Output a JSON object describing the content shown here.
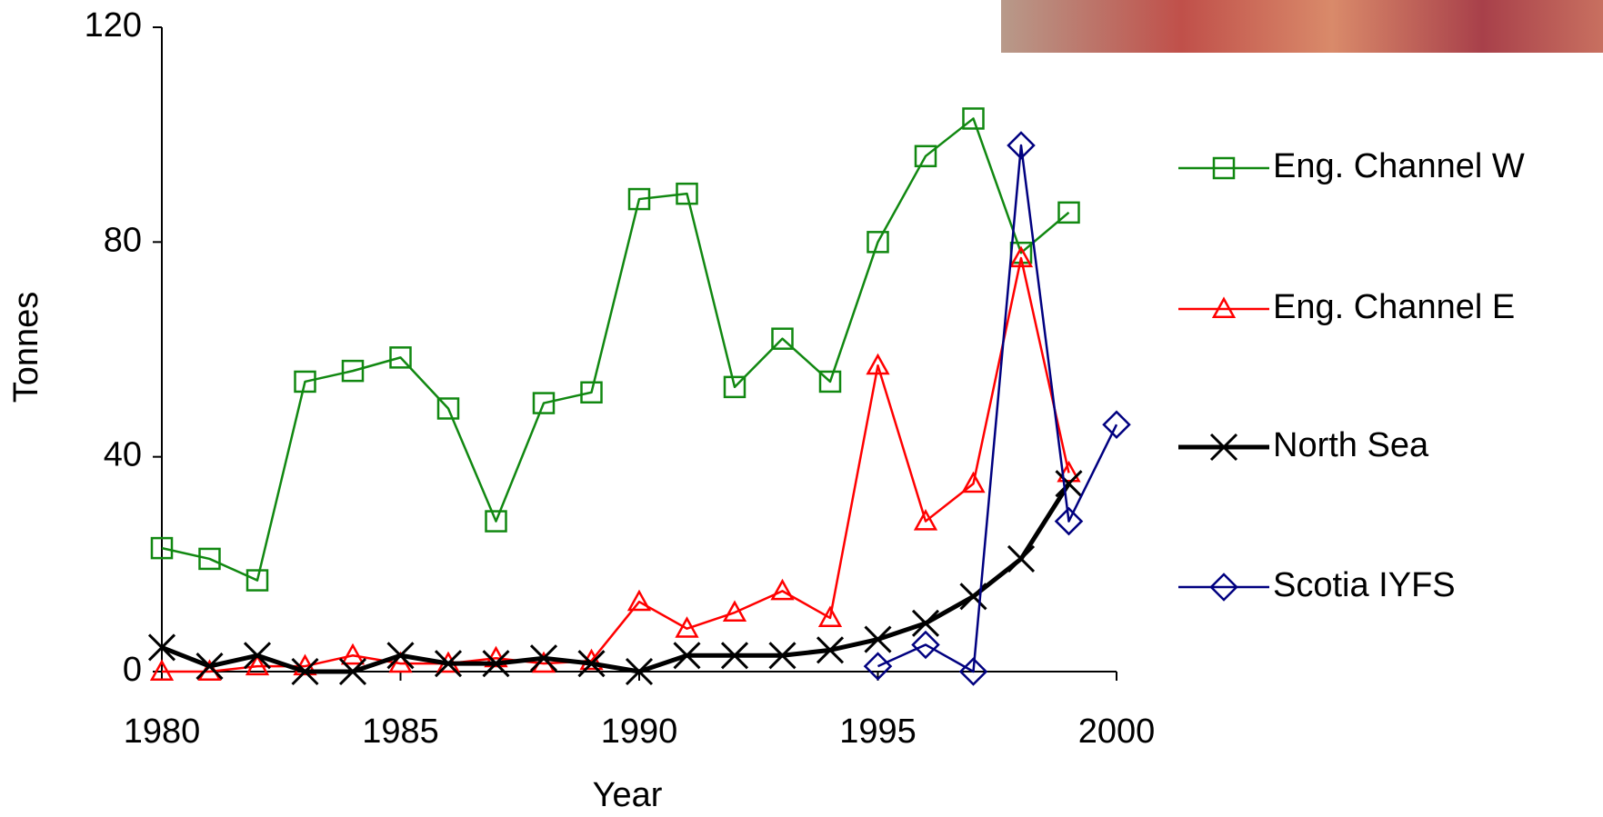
{
  "chart_data": {
    "type": "line",
    "x_label": "Year",
    "y_label": "Tonnes",
    "x": [
      1980,
      1981,
      1982,
      1983,
      1984,
      1985,
      1986,
      1987,
      1988,
      1989,
      1990,
      1991,
      1992,
      1993,
      1994,
      1995,
      1996,
      1997,
      1998,
      1999,
      2000
    ],
    "xlim": [
      1980,
      2000
    ],
    "xticks": [
      1980,
      1985,
      1990,
      1995,
      2000
    ],
    "ylim": [
      0,
      120
    ],
    "yticks": [
      0,
      40,
      80,
      120
    ],
    "legend": "right",
    "series": [
      {
        "name": "Eng. Channel W",
        "color": "#118811",
        "marker": "square",
        "line_width": 2.5,
        "values": [
          23,
          21,
          17,
          54,
          56,
          58.5,
          49,
          28,
          50,
          52,
          88,
          89,
          53,
          62,
          54,
          80,
          96,
          103,
          78,
          85.5,
          null
        ]
      },
      {
        "name": "Eng. Channel E",
        "color": "#ff0000",
        "marker": "triangle",
        "line_width": 2.5,
        "values": [
          0,
          0,
          1,
          1,
          3,
          1.5,
          1.5,
          2.5,
          1.5,
          2,
          13,
          8,
          11,
          15,
          10,
          57,
          28,
          35,
          77,
          37,
          null
        ]
      },
      {
        "name": "North Sea",
        "color": "#000000",
        "marker": "x",
        "line_width": 5,
        "values": [
          4.5,
          1,
          3,
          0,
          0,
          3,
          1.5,
          1.5,
          2.5,
          1.5,
          0,
          3,
          3,
          3,
          4,
          6,
          9,
          14,
          21,
          35,
          null
        ]
      },
      {
        "name": "Scotia IYFS",
        "color": "#000080",
        "marker": "diamond",
        "line_width": 2.5,
        "values": [
          null,
          null,
          null,
          null,
          null,
          null,
          null,
          null,
          null,
          null,
          null,
          null,
          null,
          null,
          null,
          1,
          5,
          0,
          98,
          28,
          46
        ]
      }
    ]
  }
}
